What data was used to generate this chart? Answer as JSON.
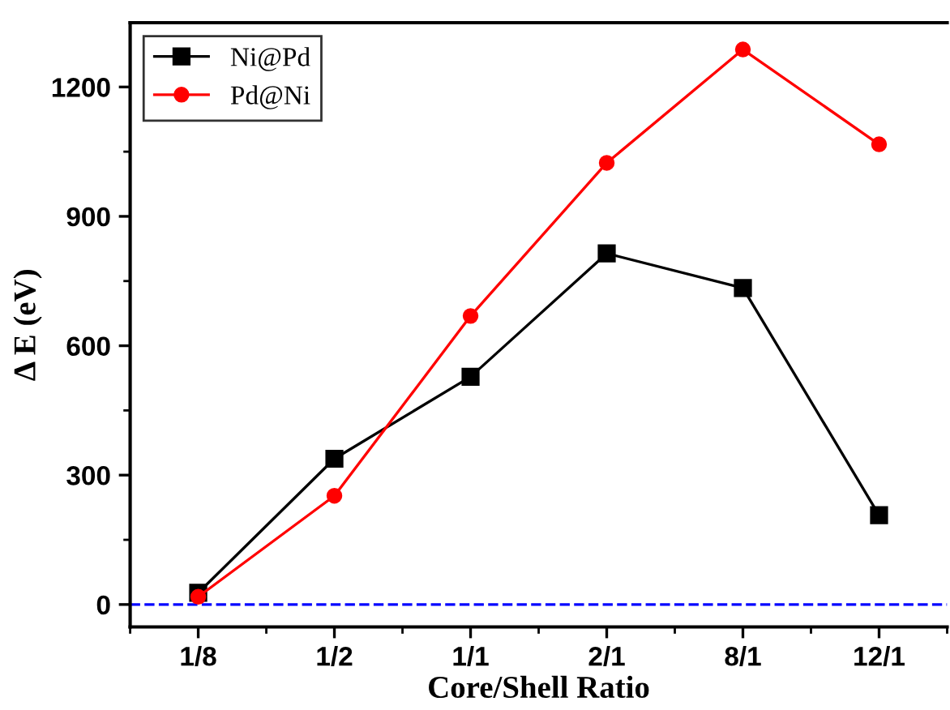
{
  "chart_data": {
    "type": "line",
    "xlabel": "Core/Shell Ratio",
    "ylabel": "Δ E (eV)",
    "categories": [
      "1/8",
      "1/2",
      "1/1",
      "2/1",
      "8/1",
      "12/1"
    ],
    "series": [
      {
        "name": "Ni@Pd",
        "color": "#000000",
        "marker": "square",
        "values": [
          27,
          338,
          528,
          814,
          734,
          207
        ]
      },
      {
        "name": "Pd@Ni",
        "color": "#ff0000",
        "marker": "circle",
        "values": [
          18,
          252,
          669,
          1024,
          1287,
          1067
        ]
      }
    ],
    "ylim": [
      -52,
      1349
    ],
    "yticks": [
      0,
      300,
      600,
      900,
      1200
    ],
    "ref_lines": [
      {
        "axis": "y",
        "value": 0,
        "color": "#0000ff",
        "line_style": "dashed"
      }
    ],
    "grid": false,
    "legend": "top left",
    "line_style": "solid"
  }
}
